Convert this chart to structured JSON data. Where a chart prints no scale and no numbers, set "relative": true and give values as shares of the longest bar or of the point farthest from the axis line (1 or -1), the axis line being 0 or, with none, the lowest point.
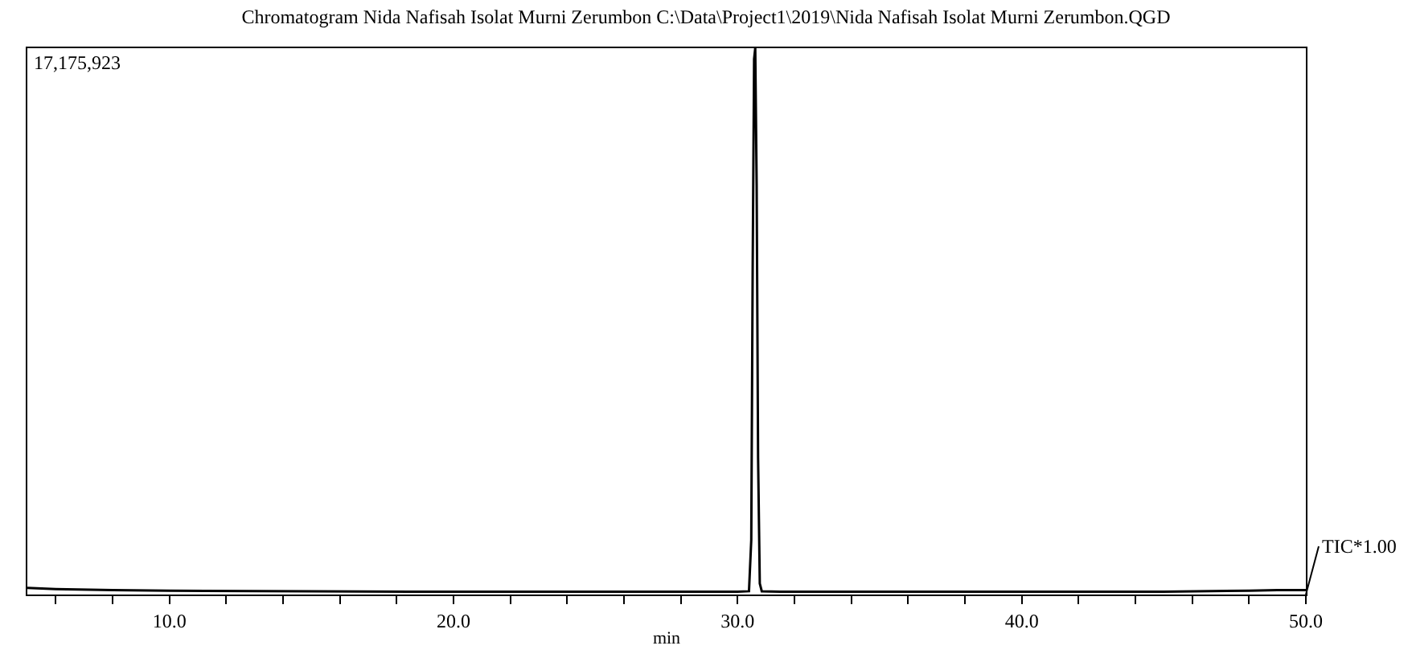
{
  "chart_data": {
    "type": "line",
    "relative": true,
    "title": "Chromatogram Nida Nafisah Isolat Murni Zerumbon C:\\Data\\Project1\\2019\\Nida Nafisah Isolat Murni Zerumbon.QGD",
    "xlabel": "min",
    "annotations": [
      "17,175,923",
      {
        "text": "TIC*1.00",
        "x": 50.0,
        "y": 0
      }
    ],
    "x": [
      5.0,
      6.0,
      8.0,
      10.0,
      15.0,
      20.0,
      25.0,
      28.0,
      30.0,
      30.4,
      30.48,
      30.53,
      30.58,
      30.62,
      30.67,
      30.72,
      30.78,
      30.85,
      31.5,
      35.0,
      40.0,
      45.0,
      48.0,
      49.0,
      50.0
    ],
    "series": [
      {
        "color": "#000000",
        "values": [
          0.012,
          0.01,
          0.008,
          0.007,
          0.006,
          0.005,
          0.005,
          0.005,
          0.005,
          0.006,
          0.1,
          0.6,
          0.98,
          1.0,
          0.75,
          0.25,
          0.02,
          0.006,
          0.005,
          0.005,
          0.005,
          0.005,
          0.007,
          0.008,
          0.008
        ]
      }
    ],
    "xlim": [
      5.0,
      50.0
    ],
    "xticks": [
      {
        "value": 6,
        "label": null
      },
      {
        "value": 8,
        "label": null
      },
      {
        "value": 10,
        "label": "10.0"
      },
      {
        "value": 12,
        "label": null
      },
      {
        "value": 14,
        "label": null
      },
      {
        "value": 16,
        "label": null
      },
      {
        "value": 18,
        "label": null
      },
      {
        "value": 20,
        "label": "20.0"
      },
      {
        "value": 22,
        "label": null
      },
      {
        "value": 24,
        "label": null
      },
      {
        "value": 26,
        "label": null
      },
      {
        "value": 28,
        "label": null
      },
      {
        "value": 30,
        "label": "30.0"
      },
      {
        "value": 32,
        "label": null
      },
      {
        "value": 34,
        "label": null
      },
      {
        "value": 36,
        "label": null
      },
      {
        "value": 38,
        "label": null
      },
      {
        "value": 40,
        "label": "40.0"
      },
      {
        "value": 42,
        "label": null
      },
      {
        "value": 44,
        "label": null
      },
      {
        "value": 46,
        "label": null
      },
      {
        "value": 48,
        "label": null
      },
      {
        "value": 50,
        "label": "50.0"
      }
    ],
    "marker": "none",
    "line_style": "solid"
  }
}
